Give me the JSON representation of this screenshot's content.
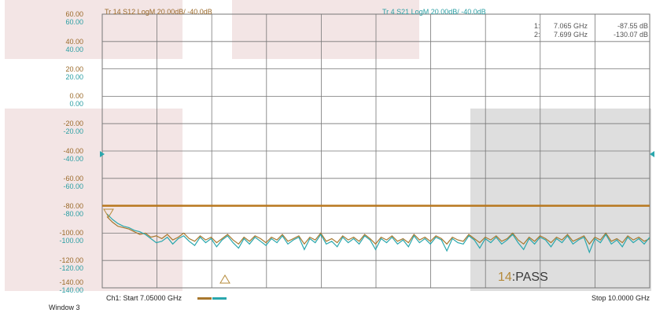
{
  "traces": {
    "tr14": {
      "label": "Tr 14  S12 LogM 20.00dB/  -40.0dB",
      "color": "#a8782e"
    },
    "tr4": {
      "label": "Tr  4  S21 LogM 20.00dB/  -40.0dB",
      "color": "#2aa7ad"
    }
  },
  "markers": [
    {
      "index": "1:",
      "freq": "7.065 GHz",
      "value": "-87.55 dB"
    },
    {
      "index": "2:",
      "freq": "7.699 GHz",
      "value": "-130.07 dB"
    }
  ],
  "y_labels": [
    {
      "a": "60.00",
      "b": "60.00"
    },
    {
      "a": "40.00",
      "b": "40.00"
    },
    {
      "a": "20.00",
      "b": "20.00"
    },
    {
      "a": "0.00",
      "b": "0.00"
    },
    {
      "a": "-20.00",
      "b": "-20.00"
    },
    {
      "a": "-40.00",
      "b": "-40.00"
    },
    {
      "a": "-60.00",
      "b": "-60.00"
    },
    {
      "a": "-80.00",
      "b": "-80.00"
    },
    {
      "a": "-100.00",
      "b": "-100.00"
    },
    {
      "a": "-120.00",
      "b": "-120.00"
    },
    {
      "a": "-140.00",
      "b": "-140.00"
    }
  ],
  "limit_test": {
    "number": "14",
    "text": ":PASS"
  },
  "footer": {
    "start": "Ch1:  Start  7.05000 GHz",
    "stop": "Stop  10.0000 GHz",
    "window": "Window 3"
  },
  "colors": {
    "grid": "#777777",
    "limit_line": "#b8771e"
  },
  "chart_data": {
    "type": "line",
    "xlim": [
      7.05,
      10.0
    ],
    "ylim": [
      -140,
      60
    ],
    "limit_line": -80,
    "series": [
      {
        "name": "Tr 14  S12 LogM 20.00dB/  -40.0dB",
        "x_start": 7.05,
        "x_stop": 10.0,
        "y": [
          -88,
          -92,
          -95,
          -96,
          -97,
          -99,
          -101,
          -100,
          -103,
          -102,
          -104,
          -101,
          -105,
          -103,
          -100,
          -104,
          -106,
          -102,
          -105,
          -103,
          -107,
          -104,
          -101,
          -105,
          -108,
          -103,
          -106,
          -102,
          -104,
          -107,
          -103,
          -105,
          -101,
          -106,
          -104,
          -102,
          -108,
          -103,
          -105,
          -100,
          -106,
          -104,
          -107,
          -102,
          -105,
          -103,
          -106,
          -101,
          -104,
          -108,
          -103,
          -105,
          -102,
          -106,
          -104,
          -107,
          -101,
          -105,
          -103,
          -106,
          -102,
          -104,
          -108,
          -103,
          -105,
          -106,
          -101,
          -104,
          -107,
          -103,
          -105,
          -102,
          -106,
          -104,
          -100,
          -105,
          -108,
          -103,
          -106,
          -102,
          -104,
          -107,
          -103,
          -105,
          -101,
          -106,
          -104,
          -102,
          -108,
          -103,
          -105,
          -100,
          -106,
          -104,
          -107,
          -102,
          -105,
          -103,
          -106,
          -104
        ]
      },
      {
        "name": "Tr  4  S21 LogM 20.00dB/  -40.0dB",
        "x_start": 7.05,
        "x_stop": 10.0,
        "y": [
          -86,
          -90,
          -93,
          -95,
          -96,
          -98,
          -99,
          -101,
          -104,
          -107,
          -106,
          -103,
          -108,
          -104,
          -102,
          -106,
          -109,
          -103,
          -107,
          -104,
          -110,
          -105,
          -102,
          -107,
          -111,
          -104,
          -108,
          -103,
          -106,
          -109,
          -104,
          -107,
          -102,
          -108,
          -105,
          -103,
          -112,
          -104,
          -107,
          -101,
          -108,
          -106,
          -110,
          -103,
          -107,
          -104,
          -108,
          -102,
          -105,
          -112,
          -104,
          -107,
          -103,
          -108,
          -105,
          -110,
          -102,
          -107,
          -104,
          -108,
          -103,
          -105,
          -113,
          -104,
          -107,
          -108,
          -102,
          -105,
          -111,
          -104,
          -107,
          -103,
          -108,
          -105,
          -101,
          -107,
          -112,
          -104,
          -108,
          -103,
          -105,
          -110,
          -104,
          -107,
          -102,
          -108,
          -105,
          -103,
          -114,
          -104,
          -107,
          -101,
          -108,
          -105,
          -110,
          -103,
          -107,
          -104,
          -108,
          -103
        ]
      }
    ]
  }
}
